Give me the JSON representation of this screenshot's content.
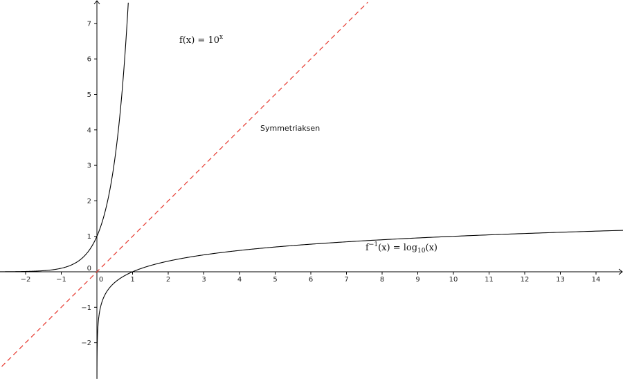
{
  "chart_data": {
    "type": "line",
    "title": "",
    "xlabel": "",
    "ylabel": "",
    "xlim": [
      -2.75,
      14.8
    ],
    "ylim": [
      -3.0,
      7.6
    ],
    "grid": false,
    "x_ticks": [
      "-2",
      "-1",
      "0",
      "1",
      "2",
      "3",
      "4",
      "5",
      "6",
      "7",
      "8",
      "9",
      "10",
      "11",
      "12",
      "13",
      "14"
    ],
    "y_ticks": [
      "-2",
      "-1",
      "0",
      "1",
      "2",
      "3",
      "4",
      "5",
      "6",
      "7"
    ],
    "series": [
      {
        "name_parts": {
          "base": "f(x) = 10",
          "sup": "x"
        },
        "function": "10^x",
        "color": "#000000",
        "style": "solid",
        "x": [
          -2.75,
          -2,
          -1.5,
          -1,
          -0.5,
          -0.25,
          0,
          0.25,
          0.5,
          0.7,
          0.8,
          0.85,
          0.88
        ],
        "y": [
          0.0018,
          0.01,
          0.032,
          0.1,
          0.316,
          0.562,
          1,
          1.778,
          3.162,
          5.012,
          6.31,
          7.079,
          7.586
        ]
      },
      {
        "name_parts": {
          "base": "f",
          "sup": "−1",
          "mid": "(x) = log",
          "sub": "10",
          "end": "(x)"
        },
        "function": "log10(x)",
        "color": "#000000",
        "style": "solid",
        "x": [
          0.001,
          0.01,
          0.1,
          0.5,
          1,
          2,
          3,
          5,
          8,
          10,
          14.8
        ],
        "y": [
          -3,
          -2,
          -1,
          -0.301,
          0,
          0.301,
          0.477,
          0.699,
          0.903,
          1,
          1.17
        ]
      },
      {
        "name": "Symmetriaksen",
        "function": "x",
        "color": "#e8453c",
        "style": "dashed",
        "x": [
          -3,
          7.6
        ],
        "y": [
          -3,
          7.6
        ]
      }
    ]
  }
}
